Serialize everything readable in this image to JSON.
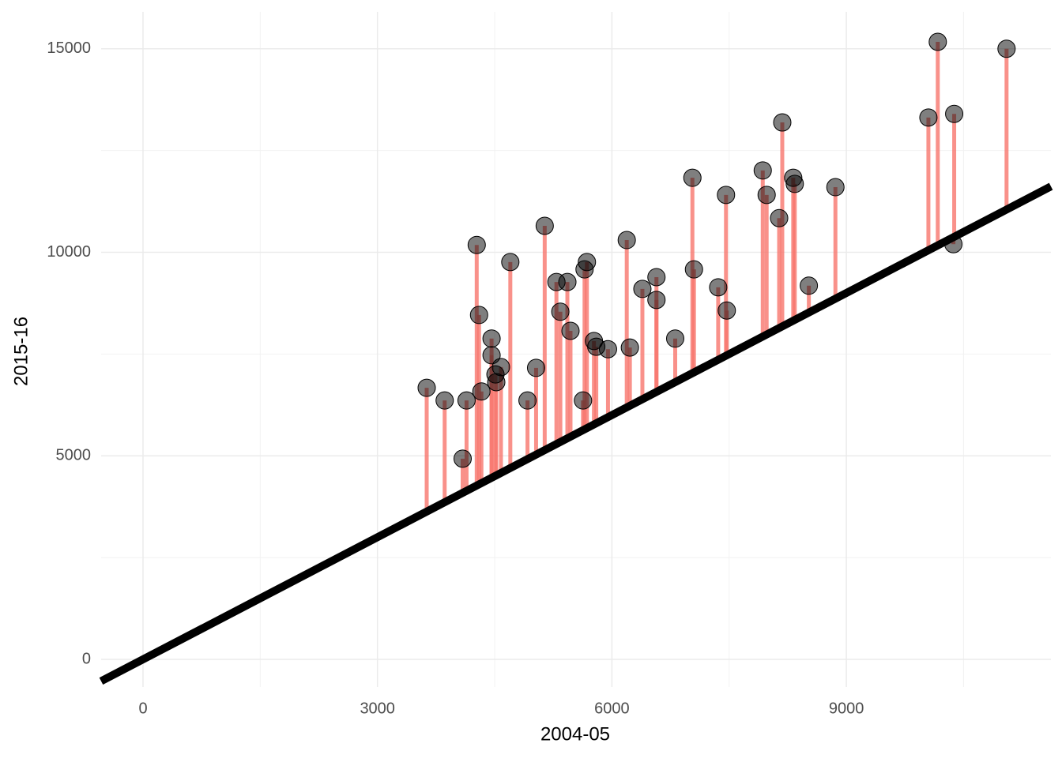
{
  "chart_data": {
    "type": "scatter",
    "xlabel": "2004-05",
    "ylabel": "2015-16",
    "x": [
      3630,
      3860,
      4090,
      4140,
      4270,
      4300,
      4330,
      4460,
      4460,
      4510,
      4520,
      4580,
      4700,
      4920,
      5030,
      5140,
      5290,
      5340,
      5430,
      5470,
      5630,
      5650,
      5680,
      5770,
      5800,
      5950,
      6190,
      6230,
      6390,
      6570,
      6570,
      6810,
      7030,
      7050,
      7360,
      7460,
      7470,
      7930,
      7980,
      8140,
      8180,
      8320,
      8340,
      8520,
      8860,
      10050,
      10170,
      10370,
      10380,
      11050
    ],
    "y": [
      6670,
      6360,
      4930,
      6360,
      10180,
      8460,
      6580,
      7880,
      7470,
      7000,
      6810,
      7180,
      9760,
      6360,
      7160,
      10650,
      9270,
      8540,
      9270,
      8070,
      6360,
      9580,
      9760,
      7820,
      7680,
      7620,
      10300,
      7660,
      9100,
      9390,
      8830,
      7880,
      11830,
      9580,
      9140,
      11410,
      8570,
      12010,
      11410,
      10840,
      13190,
      11830,
      11680,
      9180,
      11600,
      13310,
      15170,
      10200,
      13400,
      15000
    ],
    "segment_color": "#f8766d",
    "point_color": "#000000",
    "line_color": "#000000",
    "xlim": [
      -536,
      11618
    ],
    "ylim": [
      -679,
      15907
    ],
    "xticks": [
      0,
      3000,
      6000,
      9000
    ],
    "yticks": [
      0,
      5000,
      10000,
      15000
    ],
    "grid": true
  }
}
